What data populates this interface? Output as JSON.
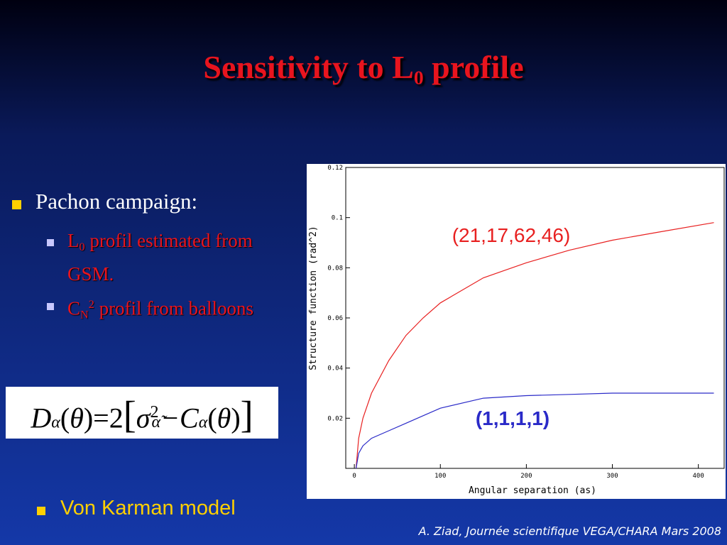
{
  "slide": {
    "title": [
      "Sensitivity to L",
      "0",
      " profile"
    ],
    "bullet": "Pachon campaign:",
    "sub_bullets": [
      [
        "L",
        "0",
        " profil estimated from GSM."
      ],
      [
        "C",
        "N",
        "2",
        " profil from balloons"
      ]
    ],
    "formula": [
      "D",
      "α",
      "(",
      "θ",
      ")=2",
      "[",
      "σ",
      "2",
      "α̃",
      "−C",
      "α",
      "(",
      "θ",
      ")",
      "]"
    ],
    "model": "Von Karman model",
    "footer": "A. Ziad, Journée scientifique VEGA/CHARA Mars 2008"
  },
  "chart_data": {
    "type": "line",
    "y_label": "Structure function (rad^2)",
    "x_label": "Angular separation (as)",
    "x": [
      2,
      5,
      10,
      20,
      40,
      60,
      80,
      100,
      150,
      200,
      250,
      300,
      350,
      418
    ],
    "series": [
      {
        "name": "(21,17,62,46)",
        "color": "#e82020",
        "values": [
          0,
          0.012,
          0.02,
          0.03,
          0.043,
          0.053,
          0.06,
          0.066,
          0.076,
          0.082,
          0.087,
          0.091,
          0.094,
          0.098
        ]
      },
      {
        "name": "(1,1,1,1)",
        "color": "#2a2ac8",
        "values": [
          0,
          0.006,
          0.009,
          0.012,
          0.015,
          0.018,
          0.021,
          0.024,
          0.028,
          0.029,
          0.0295,
          0.03,
          0.03,
          0.03
        ]
      }
    ],
    "xlim": [
      -10,
      430
    ],
    "ylim": [
      0,
      0.12
    ],
    "xticks": [
      0,
      100,
      200,
      300,
      400
    ],
    "yticks": [
      0.02,
      0.04,
      0.06,
      0.08,
      0.1,
      0.12
    ]
  }
}
